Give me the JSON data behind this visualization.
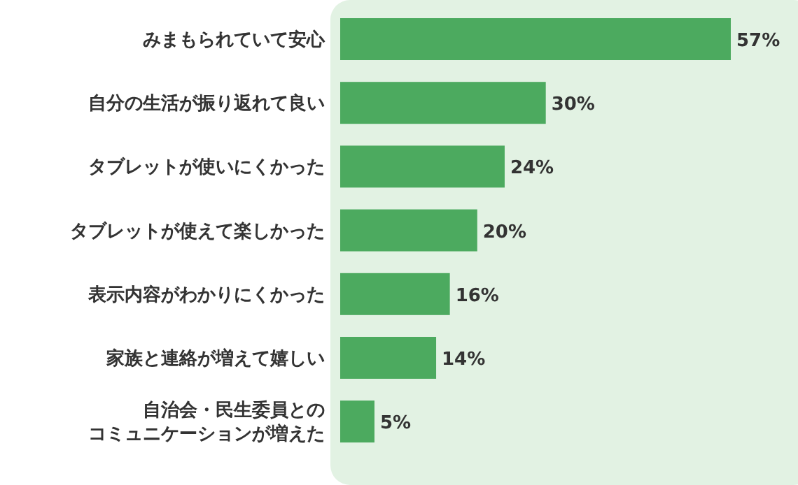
{
  "chart_data": {
    "type": "bar",
    "orientation": "horizontal",
    "color": "#4caa5f",
    "categories": [
      "みまもられていて安心",
      "自分の生活が振り返れて良い",
      "タブレットが使いにくかった",
      "タブレットが使えて楽しかった",
      "表示内容がわかりにくかった",
      "家族と連絡が増えて嬉しい",
      "自治会・民生委員とのコミュニケーションが増えた"
    ],
    "values": [
      57,
      30,
      24,
      20,
      16,
      14,
      5
    ],
    "value_labels": [
      "57%",
      "30%",
      "24%",
      "20%",
      "16%",
      "14%",
      "5%"
    ]
  }
}
